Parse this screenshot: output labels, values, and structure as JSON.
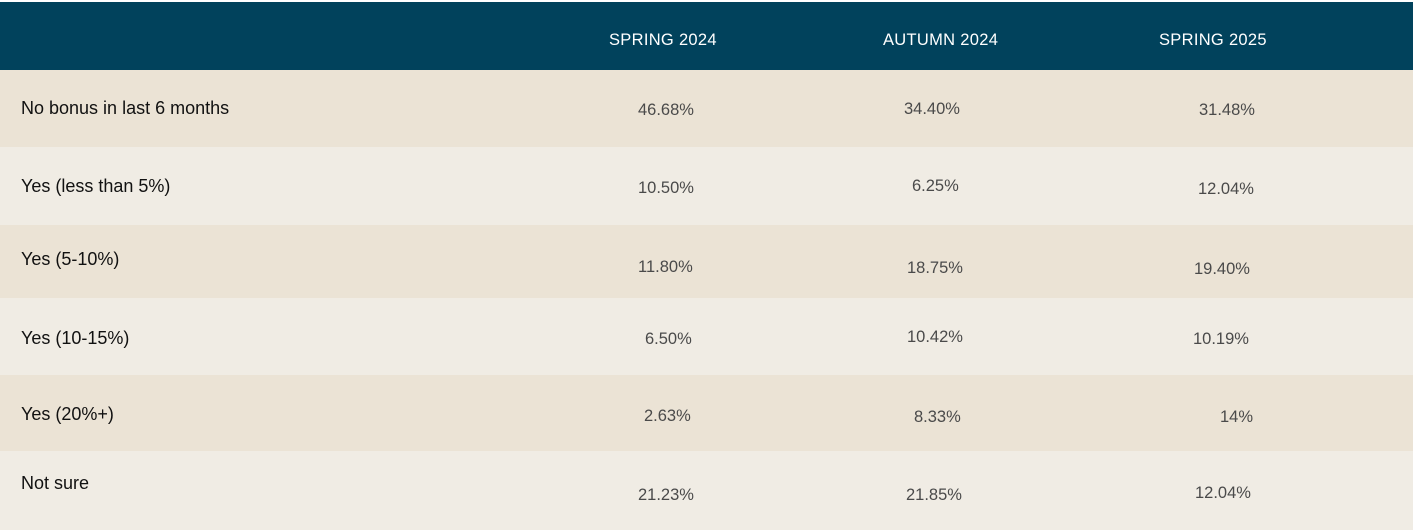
{
  "chart_data": {
    "type": "table",
    "columns": [
      "",
      "SPRING 2024",
      "AUTUMN 2024",
      "SPRING 2025"
    ],
    "rows": [
      {
        "label": "No bonus in last 6 months",
        "values": [
          "46.68%",
          "34.40%",
          "31.48%"
        ]
      },
      {
        "label": "Yes (less than 5%)",
        "values": [
          "10.50%",
          "6.25%",
          "12.04%"
        ]
      },
      {
        "label": "Yes (5-10%)",
        "values": [
          "11.80%",
          "18.75%",
          "19.40%"
        ]
      },
      {
        "label": "Yes (10-15%)",
        "values": [
          "6.50%",
          "10.42%",
          "10.19%"
        ]
      },
      {
        "label": "Yes (20%+)",
        "values": [
          "2.63%",
          "8.33%",
          "14%"
        ]
      },
      {
        "label": "Not sure",
        "values": [
          "21.23%",
          "21.85%",
          "12.04%"
        ]
      }
    ]
  },
  "colors": {
    "header_bg": "#01425c",
    "header_text": "#ffffff",
    "row_dark": "#ebe3d5",
    "row_light": "#f0ece4",
    "label_text": "#111111",
    "value_text": "#4a4a4a"
  }
}
